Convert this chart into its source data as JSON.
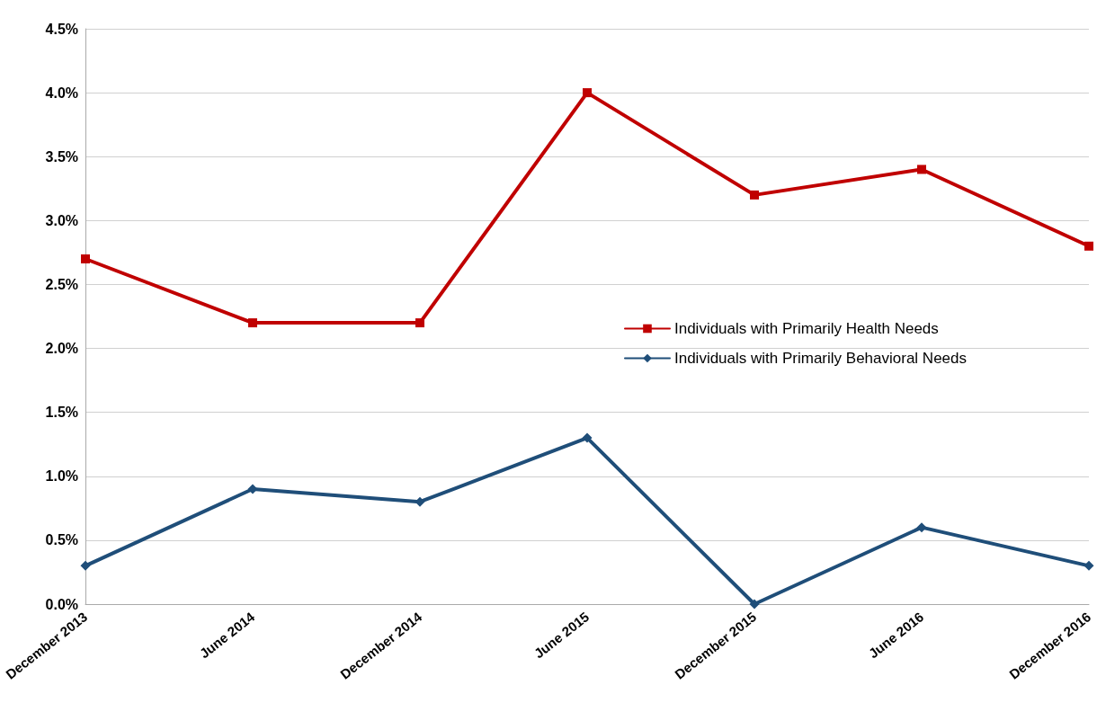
{
  "chart_data": {
    "type": "line",
    "categories": [
      "December 2013",
      "June 2014",
      "December 2014",
      "June 2015",
      "December 2015",
      "June 2016",
      "December 2016"
    ],
    "series": [
      {
        "name": "Individuals with Primarily Health Needs",
        "color": "#c00000",
        "marker": "square",
        "values": [
          2.7,
          2.2,
          2.2,
          4.0,
          3.2,
          3.4,
          2.8
        ]
      },
      {
        "name": "Individuals with Primarily Behavioral Needs",
        "color": "#1f4e79",
        "marker": "diamond",
        "values": [
          0.3,
          0.9,
          0.8,
          1.3,
          0.0,
          0.6,
          0.3
        ]
      }
    ],
    "ylim": [
      0,
      4.5
    ],
    "yticks": [
      {
        "value": 0,
        "label": "0.0%"
      },
      {
        "value": 0.5,
        "label": "0.5%"
      },
      {
        "value": 1,
        "label": "1.0%"
      },
      {
        "value": 1.5,
        "label": "1.5%"
      },
      {
        "value": 2,
        "label": "2.0%"
      },
      {
        "value": 2.5,
        "label": "2.5%"
      },
      {
        "value": 3,
        "label": "3.0%"
      },
      {
        "value": 3.5,
        "label": "3.5%"
      },
      {
        "value": 4,
        "label": "4.0%"
      },
      {
        "value": 4.5,
        "label": "4.5%"
      }
    ],
    "grid": "y",
    "legend": "right",
    "line_style": "solid"
  }
}
